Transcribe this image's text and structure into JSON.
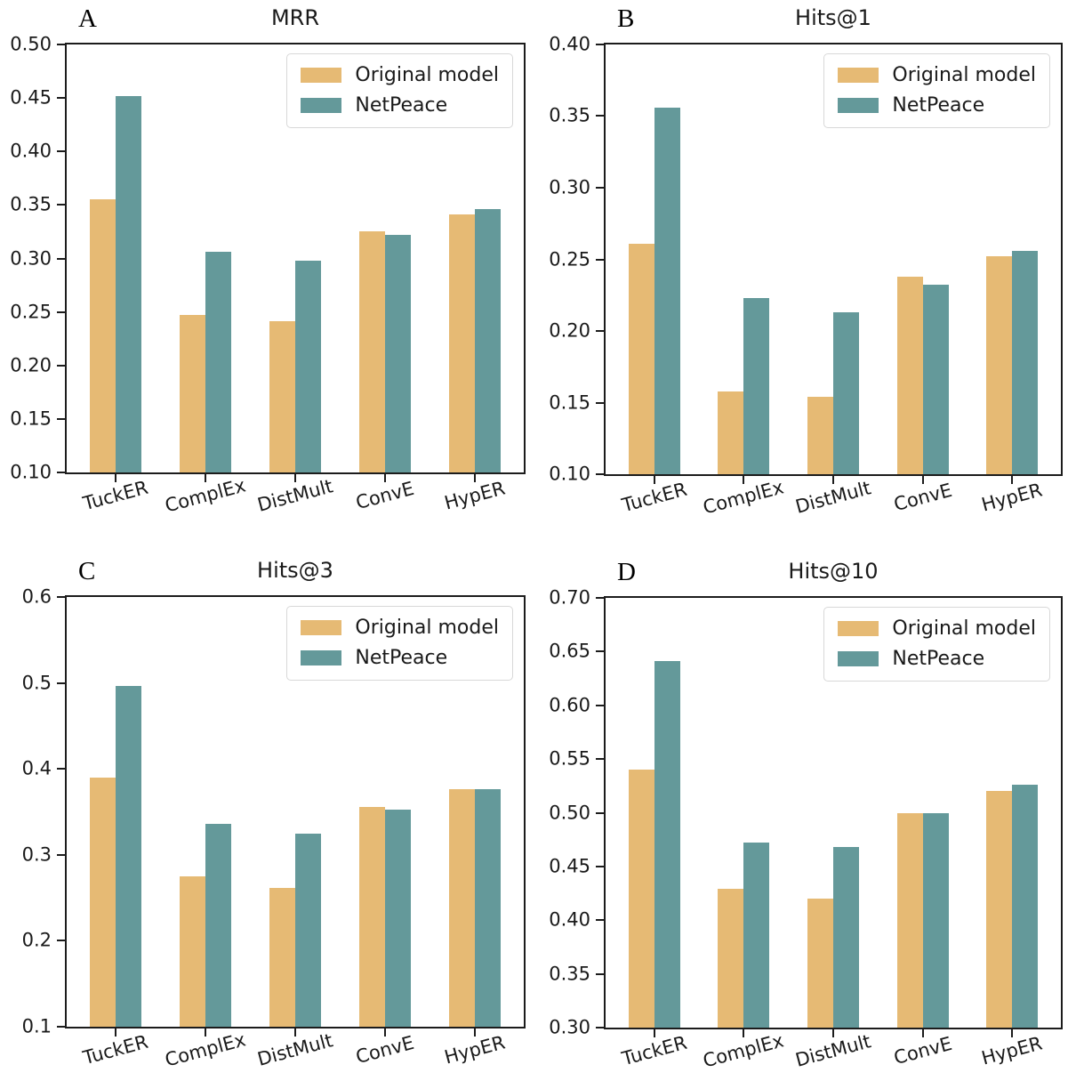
{
  "figure": {
    "background": "#FFFFFF",
    "axis_color": "#1C1C1C",
    "text_color": "#1A1A1A",
    "legend_border_color": "#D8D8D8",
    "legend_position": "upper right"
  },
  "chart_data": [
    {
      "type": "bar",
      "panel_letter": "A",
      "title": "MRR",
      "categories": [
        "TuckER",
        "ComplEx",
        "DistMult",
        "ConvE",
        "HypER"
      ],
      "series": [
        {
          "name": "Original model",
          "color": "#E6BA74",
          "values": [
            0.355,
            0.247,
            0.241,
            0.325,
            0.341
          ]
        },
        {
          "name": "NetPeace",
          "color": "#64999A",
          "values": [
            0.452,
            0.306,
            0.298,
            0.322,
            0.346
          ]
        }
      ],
      "ylim": [
        0.1,
        0.5
      ],
      "yticks": [
        "0.50",
        "0.45",
        "0.40",
        "0.35",
        "0.30",
        "0.25",
        "0.20",
        "0.15",
        "0.10"
      ],
      "grid": false,
      "legend_position": "upper right"
    },
    {
      "type": "bar",
      "panel_letter": "B",
      "title": "Hits@1",
      "categories": [
        "TuckER",
        "ComplEx",
        "DistMult",
        "ConvE",
        "HypER"
      ],
      "series": [
        {
          "name": "Original model",
          "color": "#E6BA74",
          "values": [
            0.261,
            0.158,
            0.154,
            0.238,
            0.252
          ]
        },
        {
          "name": "NetPeace",
          "color": "#64999A",
          "values": [
            0.356,
            0.223,
            0.213,
            0.232,
            0.256
          ]
        }
      ],
      "ylim": [
        0.1,
        0.4
      ],
      "yticks": [
        "0.40",
        "0.35",
        "0.30",
        "0.25",
        "0.20",
        "0.15",
        "0.10"
      ],
      "grid": false,
      "legend_position": "upper right"
    },
    {
      "type": "bar",
      "panel_letter": "C",
      "title": "Hits@3",
      "categories": [
        "TuckER",
        "ComplEx",
        "DistMult",
        "ConvE",
        "HypER"
      ],
      "series": [
        {
          "name": "Original model",
          "color": "#E6BA74",
          "values": [
            0.39,
            0.275,
            0.262,
            0.356,
            0.376
          ]
        },
        {
          "name": "NetPeace",
          "color": "#64999A",
          "values": [
            0.496,
            0.336,
            0.325,
            0.353,
            0.376
          ]
        }
      ],
      "ylim": [
        0.1,
        0.6
      ],
      "yticks": [
        "0.6",
        "0.5",
        "0.4",
        "0.3",
        "0.2",
        "0.1"
      ],
      "grid": false,
      "legend_position": "upper right"
    },
    {
      "type": "bar",
      "panel_letter": "D",
      "title": "Hits@10",
      "categories": [
        "TuckER",
        "ComplEx",
        "DistMult",
        "ConvE",
        "HypER"
      ],
      "series": [
        {
          "name": "Original model",
          "color": "#E6BA74",
          "values": [
            0.54,
            0.429,
            0.42,
            0.5,
            0.52
          ]
        },
        {
          "name": "NetPeace",
          "color": "#64999A",
          "values": [
            0.641,
            0.472,
            0.468,
            0.5,
            0.526
          ]
        }
      ],
      "ylim": [
        0.3,
        0.7
      ],
      "yticks": [
        "0.70",
        "0.65",
        "0.60",
        "0.55",
        "0.50",
        "0.45",
        "0.40",
        "0.35",
        "0.30"
      ],
      "grid": false,
      "legend_position": "upper right"
    }
  ]
}
